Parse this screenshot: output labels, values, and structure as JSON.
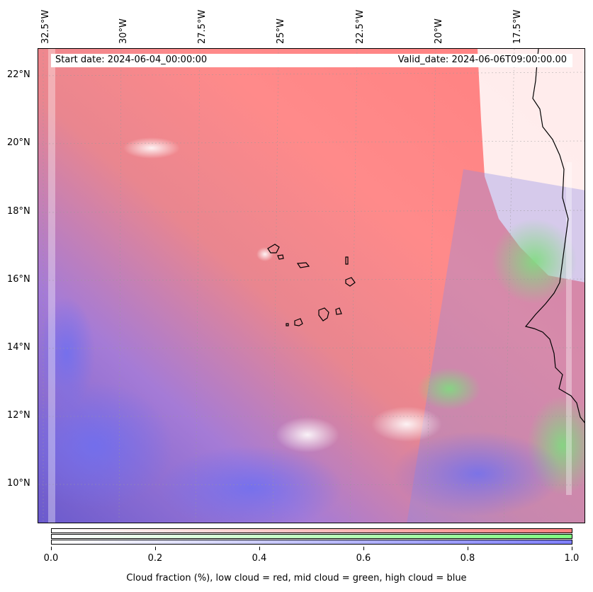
{
  "map": {
    "start_date": "Start date: 2024-06-04_00:00:00",
    "valid_date": "Valid_date: 2024-06-06T09:00:00.00",
    "longitude_labels": [
      "32.5°W",
      "30°W",
      "27.5°W",
      "25°W",
      "22.5°W",
      "20°W",
      "17.5°W"
    ],
    "latitude_labels": [
      "22°N",
      "20°N",
      "18°N",
      "16°N",
      "14°N",
      "12°N",
      "10°N"
    ],
    "colors": {
      "low_cloud": "#ff7f7f",
      "mid_cloud": "#7fff7f",
      "high_cloud": "#7f7fff",
      "coastline": "#000000"
    }
  },
  "colorbar": {
    "ticks": [
      "0.0",
      "0.2",
      "0.4",
      "0.6",
      "0.8",
      "1.0"
    ],
    "caption": "Cloud fraction (%), low cloud = red, mid cloud = green, high cloud = blue"
  }
}
